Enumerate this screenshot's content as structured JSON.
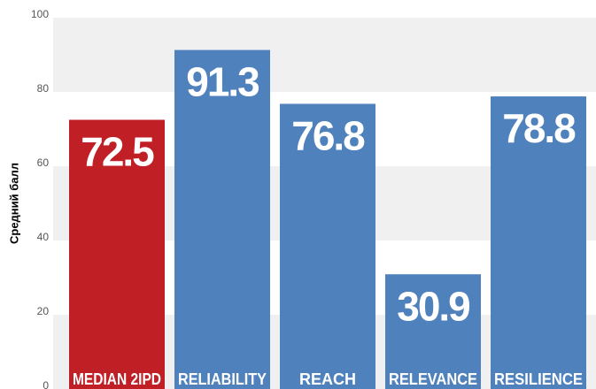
{
  "chart_data": {
    "type": "bar",
    "y_label": "Средний балл",
    "categories": [
      "MEDIAN 2IPD",
      "RELIABILITY",
      "REACH",
      "RELEVANCE",
      "RESILIENCE"
    ],
    "values": [
      72.5,
      91.3,
      76.8,
      30.9,
      78.8
    ],
    "colors": [
      "#c01f26",
      "#4f81bd",
      "#4f81bd",
      "#4f81bd",
      "#4f81bd"
    ],
    "ylim": [
      0,
      100
    ],
    "yticks": [
      0,
      20,
      40,
      60,
      80,
      100
    ],
    "grid": "bands"
  }
}
